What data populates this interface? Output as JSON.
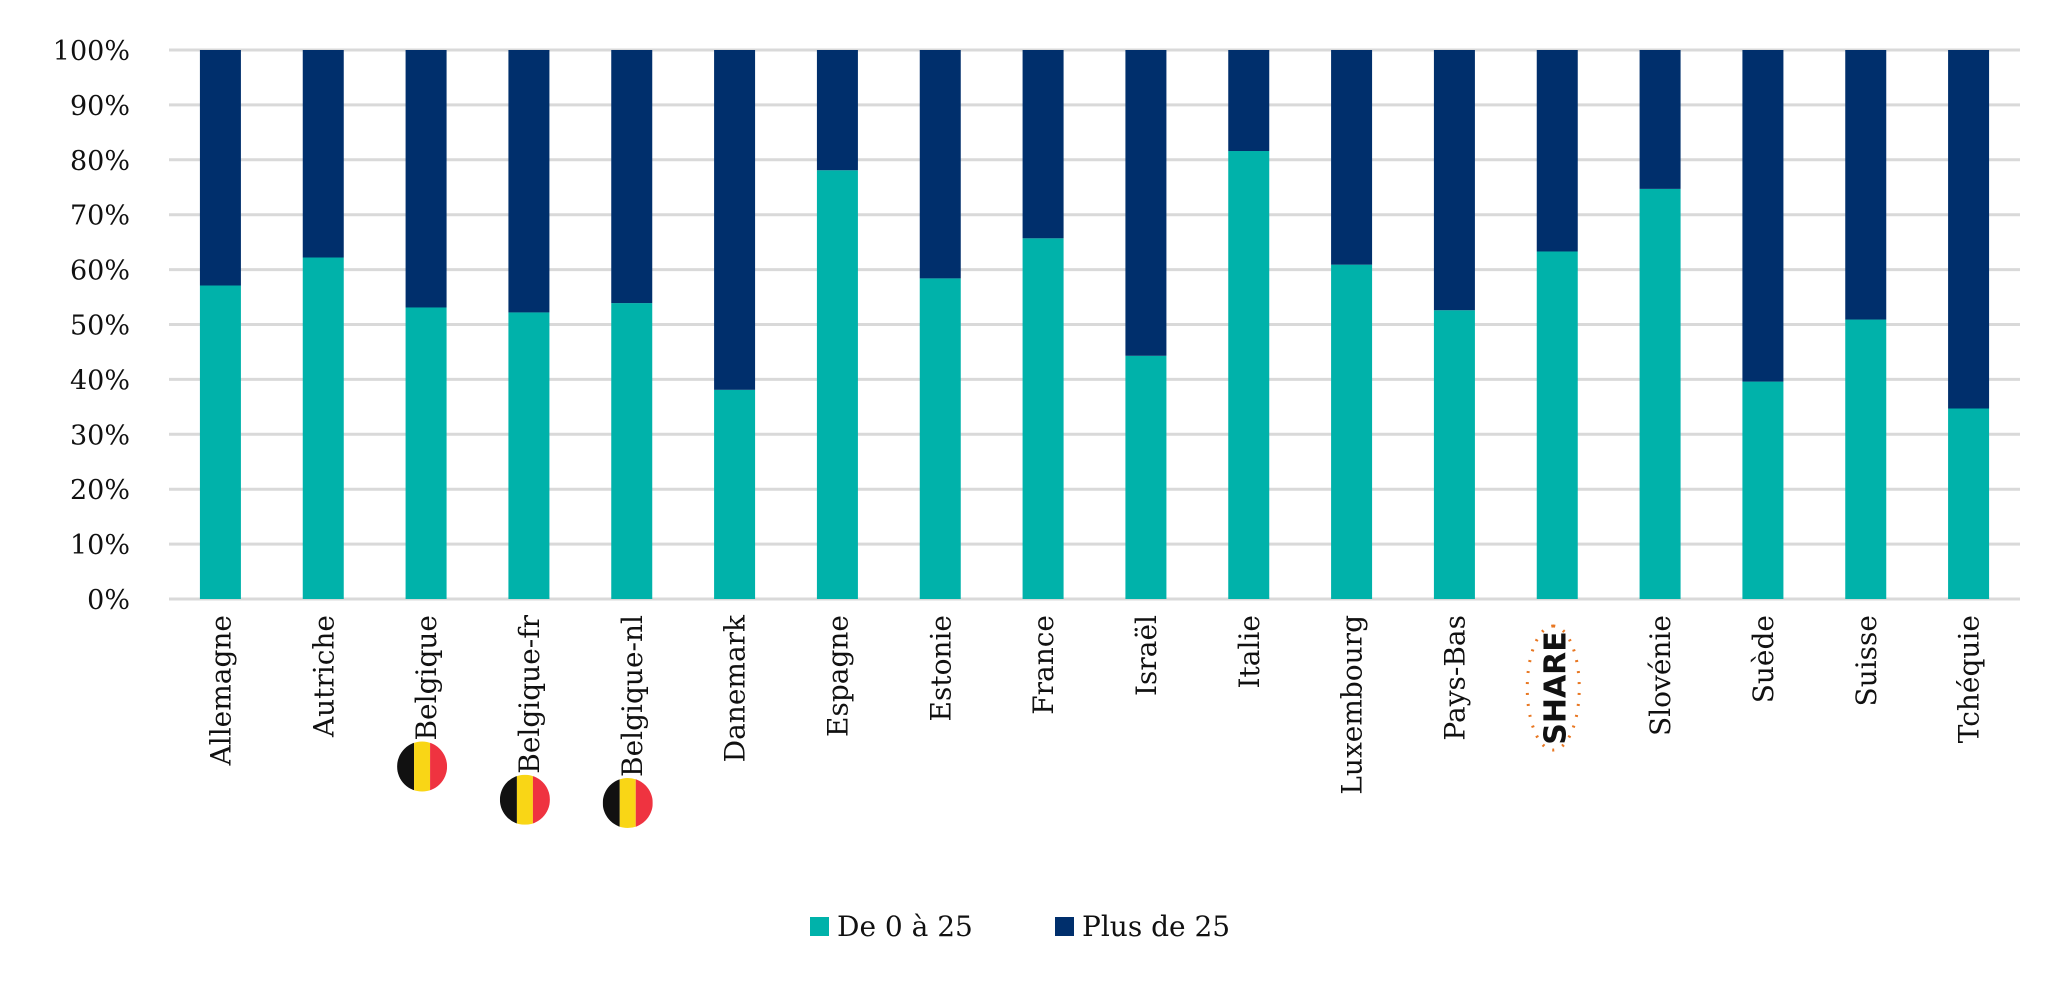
{
  "chart_data": {
    "type": "bar",
    "stacked": true,
    "percent": true,
    "title": "",
    "xlabel": "",
    "ylabel": "",
    "ylim": [
      0,
      100
    ],
    "yticks": [
      "0%",
      "10%",
      "20%",
      "30%",
      "40%",
      "50%",
      "60%",
      "70%",
      "80%",
      "90%",
      "100%"
    ],
    "grid": true,
    "legend_position": "bottom",
    "categories": [
      "Allemagne",
      "Autriche",
      "Belgique",
      "Belgique-fr",
      "Belgique-nl",
      "Danemark",
      "Espagne",
      "Estonie",
      "France",
      "Israël",
      "Italie",
      "Luxembourg",
      "Pays-Bas",
      "SHARE",
      "Slovénie",
      "Suède",
      "Suisse",
      "Tchéquie"
    ],
    "category_icons": {
      "Belgique": "belgium-flag-icon",
      "Belgique-fr": "belgium-flag-icon",
      "Belgique-nl": "belgium-flag-icon",
      "SHARE": "share-logo"
    },
    "series": [
      {
        "name": "De 0 à 25",
        "color": "#00B2AA",
        "values": [
          57.1,
          62.2,
          53.1,
          52.2,
          53.9,
          38.1,
          78.1,
          58.4,
          65.7,
          44.3,
          81.6,
          60.9,
          52.6,
          63.3,
          74.7,
          39.6,
          50.9,
          34.7
        ]
      },
      {
        "name": "Plus de 25",
        "color": "#002F6C",
        "values": [
          42.9,
          37.8,
          46.9,
          47.8,
          46.1,
          61.9,
          21.9,
          41.6,
          34.3,
          55.7,
          18.4,
          39.1,
          47.4,
          36.7,
          25.3,
          60.4,
          49.1,
          65.3
        ]
      }
    ],
    "gridline_color": "#D9D9D9"
  }
}
